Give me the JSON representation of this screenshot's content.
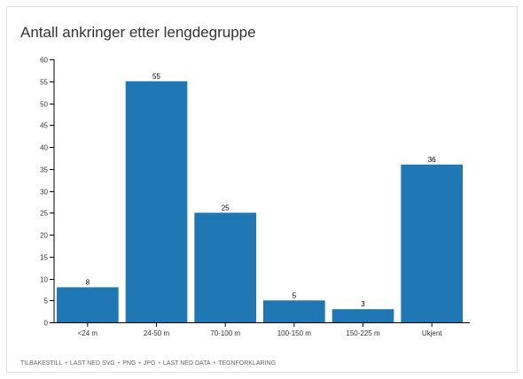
{
  "title": "Antall ankringer etter lengdegruppe",
  "chart_data": {
    "type": "bar",
    "title": "Antall ankringer etter lengdegruppe",
    "xlabel": "",
    "ylabel": "",
    "categories": [
      "<24 m",
      "24-50 m",
      "70-100 m",
      "100-150 m",
      "150-225 m",
      "Ukjent"
    ],
    "values": [
      8,
      55,
      25,
      5,
      3,
      36
    ],
    "ylim": [
      0,
      60
    ],
    "yticks": [
      0,
      5,
      10,
      15,
      20,
      25,
      30,
      35,
      40,
      45,
      50,
      55,
      60
    ],
    "bar_color": "#1f77b4",
    "data_labels": true,
    "grid": false,
    "legend": "none"
  },
  "footer": {
    "links": [
      "TILBAKESTILL",
      "LAST NED SVG",
      "PNG",
      "JPG",
      "LAST NED DATA",
      "TEGNFORKLARING"
    ],
    "separator": "•"
  }
}
